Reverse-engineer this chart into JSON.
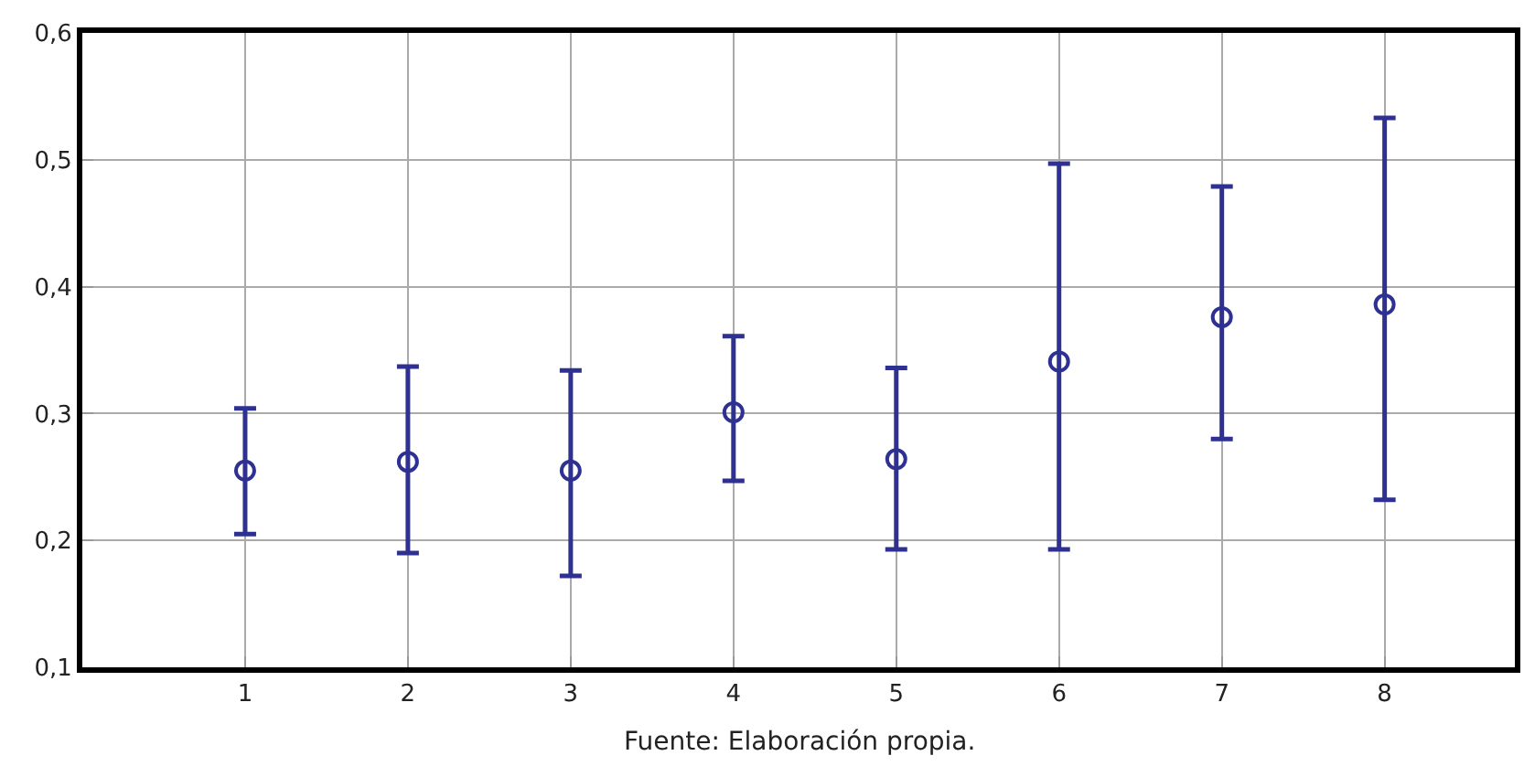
{
  "chart_data": {
    "type": "scatter",
    "x": [
      1,
      2,
      3,
      4,
      5,
      6,
      7,
      8
    ],
    "series": [
      {
        "color": "#2e3192",
        "values": [
          0.255,
          0.262,
          0.255,
          0.301,
          0.264,
          0.341,
          0.376,
          0.386
        ],
        "errors": [
          [
            0.205,
            0.304
          ],
          [
            0.19,
            0.337
          ],
          [
            0.172,
            0.334
          ],
          [
            0.247,
            0.361
          ],
          [
            0.193,
            0.336
          ],
          [
            0.193,
            0.497
          ],
          [
            0.28,
            0.479
          ],
          [
            0.232,
            0.533
          ]
        ]
      }
    ],
    "xlim": [
      0,
      8.8
    ],
    "xticks": [
      1,
      2,
      3,
      4,
      5,
      6,
      7,
      8
    ],
    "ylim": [
      0.1,
      0.6
    ],
    "yticks": [
      {
        "value": 0.1,
        "label": "0,1"
      },
      {
        "value": 0.2,
        "label": "0,2"
      },
      {
        "value": 0.3,
        "label": "0,3"
      },
      {
        "value": 0.4,
        "label": "0,4"
      },
      {
        "value": 0.5,
        "label": "0,5"
      },
      {
        "value": 0.6,
        "label": "0,6"
      }
    ],
    "grid": true,
    "marker": "circle",
    "annotations": [
      "Fuente: Elaboración propia."
    ]
  }
}
